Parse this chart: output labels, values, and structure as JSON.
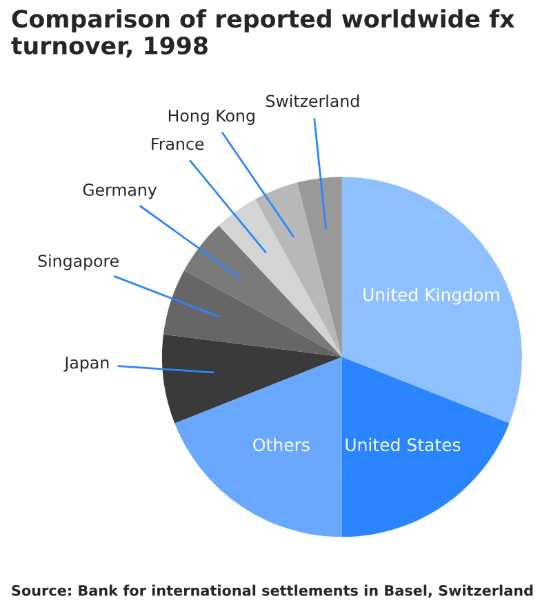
{
  "chart_data": {
    "type": "pie",
    "title": "Comparison of reported worldwide fx turnover, 1998",
    "categories": [
      "United Kingdom",
      "United States",
      "Others",
      "Japan",
      "Singapore",
      "Germany",
      "France",
      "Hong Kong",
      "Switzerland"
    ],
    "values": [
      31,
      19,
      19,
      8,
      6,
      5,
      4,
      4,
      4
    ],
    "colors": [
      "#8fc0ff",
      "#2a85ff",
      "#6aa8ff",
      "#3a3a3a",
      "#666666",
      "#7a7a7a",
      "#d4d4d4",
      "#b8b8b8",
      "#999999"
    ],
    "annotations": [
      "Source: Bank for international settlements in Basel, Switzerland"
    ]
  }
}
